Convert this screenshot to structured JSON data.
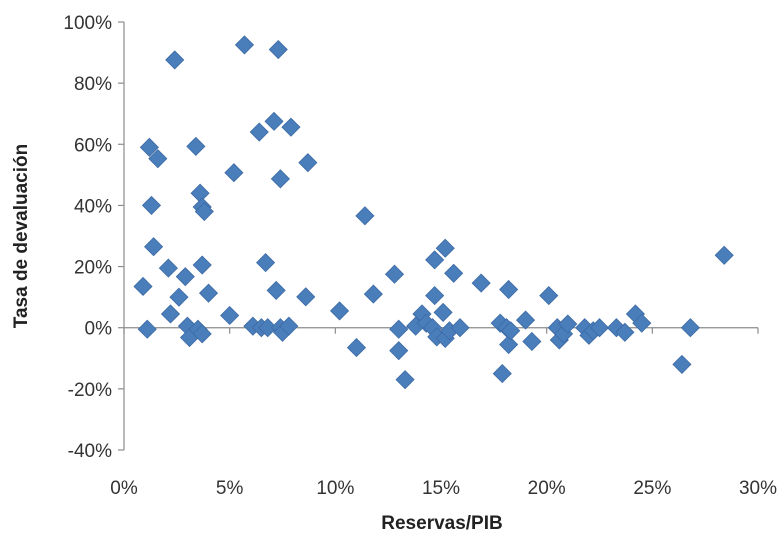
{
  "colors": {
    "marker": "#4a7ebb",
    "marker_edge": "#3c6aa5",
    "axis": "#8c8c8c",
    "text": "#333333"
  },
  "chart_data": {
    "type": "scatter",
    "title": "",
    "xlabel": "Reservas/PIB",
    "ylabel": "Tasa de devaluación",
    "xlim": [
      0,
      0.3
    ],
    "ylim": [
      -0.4,
      1.0
    ],
    "x_ticks": [
      0,
      0.05,
      0.1,
      0.15,
      0.2,
      0.25,
      0.3
    ],
    "x_tick_labels": [
      "0%",
      "5%",
      "10%",
      "15%",
      "20%",
      "25%",
      "30%"
    ],
    "y_ticks": [
      -0.4,
      -0.2,
      0,
      0.2,
      0.4,
      0.6,
      0.8,
      1.0
    ],
    "y_tick_labels": [
      "-40%",
      "-20%",
      "0%",
      "20%",
      "40%",
      "60%",
      "80%",
      "100%"
    ],
    "grid": false,
    "legend": "none",
    "marker": "diamond",
    "series": [
      {
        "points": [
          [
            0.009,
            0.135
          ],
          [
            0.011,
            -0.005
          ],
          [
            0.012,
            0.59
          ],
          [
            0.013,
            0.4
          ],
          [
            0.014,
            0.265
          ],
          [
            0.016,
            0.553
          ],
          [
            0.021,
            0.195
          ],
          [
            0.022,
            0.045
          ],
          [
            0.024,
            0.876
          ],
          [
            0.026,
            0.1
          ],
          [
            0.029,
            0.167
          ],
          [
            0.03,
            0.005
          ],
          [
            0.031,
            -0.032
          ],
          [
            0.034,
            0.593
          ],
          [
            0.035,
            -0.005
          ],
          [
            0.036,
            0.44
          ],
          [
            0.037,
            0.395
          ],
          [
            0.037,
            0.205
          ],
          [
            0.038,
            0.38
          ],
          [
            0.037,
            -0.02
          ],
          [
            0.04,
            0.113
          ],
          [
            0.05,
            0.04
          ],
          [
            0.052,
            0.507
          ],
          [
            0.057,
            0.925
          ],
          [
            0.061,
            0.005
          ],
          [
            0.064,
            0.64
          ],
          [
            0.065,
            0.0
          ],
          [
            0.067,
            0.213
          ],
          [
            0.068,
            0.0
          ],
          [
            0.071,
            0.675
          ],
          [
            0.072,
            0.122
          ],
          [
            0.073,
            0.91
          ],
          [
            0.074,
            0.487
          ],
          [
            0.074,
            0.0
          ],
          [
            0.075,
            -0.015
          ],
          [
            0.078,
            0.005
          ],
          [
            0.079,
            0.656
          ],
          [
            0.086,
            0.101
          ],
          [
            0.087,
            0.54
          ],
          [
            0.102,
            0.055
          ],
          [
            0.11,
            -0.065
          ],
          [
            0.114,
            0.366
          ],
          [
            0.118,
            0.11
          ],
          [
            0.128,
            0.175
          ],
          [
            0.13,
            -0.005
          ],
          [
            0.13,
            -0.075
          ],
          [
            0.133,
            -0.17
          ],
          [
            0.138,
            0.005
          ],
          [
            0.141,
            0.045
          ],
          [
            0.143,
            0.015
          ],
          [
            0.146,
            0.0
          ],
          [
            0.147,
            0.222
          ],
          [
            0.147,
            0.105
          ],
          [
            0.148,
            -0.03
          ],
          [
            0.151,
            0.05
          ],
          [
            0.152,
            0.26
          ],
          [
            0.152,
            -0.035
          ],
          [
            0.154,
            -0.01
          ],
          [
            0.156,
            0.178
          ],
          [
            0.159,
            0.0
          ],
          [
            0.169,
            0.146
          ],
          [
            0.178,
            0.015
          ],
          [
            0.179,
            -0.15
          ],
          [
            0.181,
            0.0
          ],
          [
            0.182,
            0.125
          ],
          [
            0.182,
            -0.055
          ],
          [
            0.183,
            -0.01
          ],
          [
            0.19,
            0.025
          ],
          [
            0.193,
            -0.045
          ],
          [
            0.201,
            0.105
          ],
          [
            0.205,
            0.0
          ],
          [
            0.206,
            -0.04
          ],
          [
            0.208,
            -0.02
          ],
          [
            0.21,
            0.012
          ],
          [
            0.218,
            0.0
          ],
          [
            0.22,
            -0.025
          ],
          [
            0.222,
            -0.01
          ],
          [
            0.225,
            0.0
          ],
          [
            0.233,
            0.0
          ],
          [
            0.237,
            -0.015
          ],
          [
            0.242,
            0.045
          ],
          [
            0.245,
            0.015
          ],
          [
            0.264,
            -0.12
          ],
          [
            0.268,
            0.0
          ],
          [
            0.284,
            0.237
          ]
        ]
      }
    ]
  }
}
